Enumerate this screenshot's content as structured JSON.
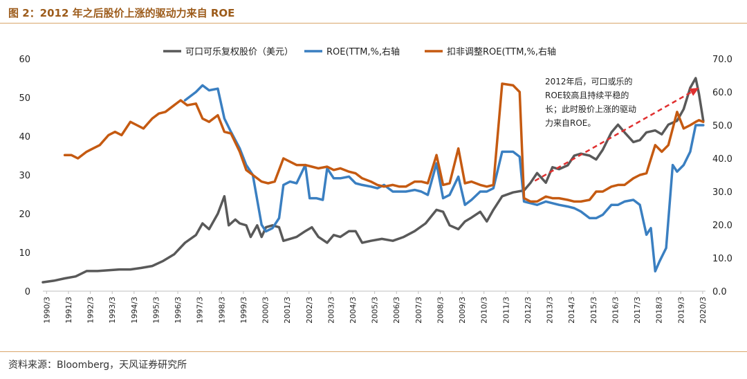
{
  "figure": {
    "title": "图 2：2012 年之后股价上涨的驱动力来自 ROE",
    "source": "资料来源：Bloomberg，天风证券研究所"
  },
  "annotation": {
    "lines": [
      "2012年后，可口或乐的",
      "ROE较高且持续平稳的",
      "长；此时股价上涨的驱动",
      "力来自ROE。"
    ]
  },
  "chart_data": {
    "type": "line",
    "colors": {
      "price": "#595959",
      "roe": "#3a7fc1",
      "roe_adj": "#c55a11",
      "arrow": "#e03030"
    },
    "legend": [
      "可口可乐复权股价（美元）",
      "ROE(TTM,%,右轴",
      "扣非调整ROE(TTM,%,右轴"
    ],
    "x_ticks": [
      "1990/3",
      "1991/3",
      "1992/3",
      "1993/3",
      "1994/3",
      "1995/3",
      "1996/3",
      "1997/3",
      "1998/3",
      "1999/3",
      "2000/3",
      "2001/3",
      "2002/3",
      "2003/3",
      "2004/3",
      "2005/3",
      "2006/3",
      "2007/3",
      "2008/3",
      "2009/3",
      "2010/3",
      "2011/3",
      "2012/3",
      "2013/3",
      "2014/3",
      "2015/3",
      "2016/3",
      "2017/3",
      "2018/3",
      "2019/3",
      "2020/3"
    ],
    "y_left": {
      "min": 0,
      "max": 60,
      "ticks": [
        "0",
        "10",
        "20",
        "30",
        "40",
        "50",
        "60"
      ]
    },
    "y_right": {
      "min": 0,
      "max": 70,
      "ticks": [
        "0.0",
        "10.0",
        "20.0",
        "30.0",
        "40.0",
        "50.0",
        "60.0",
        "70.0"
      ]
    },
    "series": [
      {
        "name": "可口可乐复权股价（美元）",
        "axis": "left",
        "points": [
          [
            1990.0,
            2.3
          ],
          [
            1990.5,
            2.7
          ],
          [
            1991.0,
            3.3
          ],
          [
            1991.5,
            3.8
          ],
          [
            1992.0,
            5.2
          ],
          [
            1992.5,
            5.2
          ],
          [
            1993.0,
            5.4
          ],
          [
            1993.5,
            5.6
          ],
          [
            1994.0,
            5.6
          ],
          [
            1994.5,
            6.0
          ],
          [
            1995.0,
            6.5
          ],
          [
            1995.5,
            7.8
          ],
          [
            1996.0,
            9.5
          ],
          [
            1996.5,
            12.5
          ],
          [
            1997.0,
            14.5
          ],
          [
            1997.3,
            17.5
          ],
          [
            1997.6,
            16.0
          ],
          [
            1998.0,
            20.0
          ],
          [
            1998.3,
            24.5
          ],
          [
            1998.5,
            17.0
          ],
          [
            1998.8,
            18.5
          ],
          [
            1999.0,
            17.5
          ],
          [
            1999.3,
            17.0
          ],
          [
            1999.5,
            14.0
          ],
          [
            1999.8,
            17.0
          ],
          [
            2000.0,
            14.0
          ],
          [
            2000.2,
            16.5
          ],
          [
            2000.5,
            17.0
          ],
          [
            2000.8,
            16.5
          ],
          [
            2001.0,
            13.0
          ],
          [
            2001.3,
            13.5
          ],
          [
            2001.6,
            14.0
          ],
          [
            2002.0,
            15.5
          ],
          [
            2002.3,
            16.5
          ],
          [
            2002.6,
            14.0
          ],
          [
            2003.0,
            12.5
          ],
          [
            2003.3,
            14.5
          ],
          [
            2003.6,
            14.0
          ],
          [
            2004.0,
            15.5
          ],
          [
            2004.3,
            15.5
          ],
          [
            2004.6,
            12.5
          ],
          [
            2005.0,
            13.0
          ],
          [
            2005.5,
            13.5
          ],
          [
            2006.0,
            13.0
          ],
          [
            2006.5,
            14.0
          ],
          [
            2007.0,
            15.5
          ],
          [
            2007.5,
            17.5
          ],
          [
            2008.0,
            21.0
          ],
          [
            2008.3,
            20.5
          ],
          [
            2008.6,
            17.0
          ],
          [
            2009.0,
            16.0
          ],
          [
            2009.3,
            18.0
          ],
          [
            2009.6,
            19.0
          ],
          [
            2010.0,
            20.5
          ],
          [
            2010.3,
            18.0
          ],
          [
            2010.6,
            21.0
          ],
          [
            2011.0,
            24.5
          ],
          [
            2011.5,
            25.5
          ],
          [
            2012.0,
            26.0
          ],
          [
            2012.3,
            28.0
          ],
          [
            2012.6,
            30.5
          ],
          [
            2013.0,
            28.0
          ],
          [
            2013.3,
            32.0
          ],
          [
            2013.6,
            31.5
          ],
          [
            2014.0,
            32.5
          ],
          [
            2014.3,
            35.0
          ],
          [
            2014.6,
            35.5
          ],
          [
            2015.0,
            35.0
          ],
          [
            2015.3,
            34.0
          ],
          [
            2015.6,
            36.5
          ],
          [
            2016.0,
            41.0
          ],
          [
            2016.3,
            43.0
          ],
          [
            2016.6,
            41.0
          ],
          [
            2017.0,
            38.5
          ],
          [
            2017.3,
            39.0
          ],
          [
            2017.6,
            41.0
          ],
          [
            2018.0,
            41.5
          ],
          [
            2018.3,
            40.5
          ],
          [
            2018.6,
            43.0
          ],
          [
            2019.0,
            44.0
          ],
          [
            2019.3,
            47.0
          ],
          [
            2019.6,
            52.5
          ],
          [
            2019.85,
            55.0
          ],
          [
            2020.0,
            51.0
          ],
          [
            2020.2,
            44.0
          ]
        ]
      },
      {
        "name": "ROE(TTM,%,右轴",
        "axis": "right",
        "points": [
          [
            1996.5,
            57.5
          ],
          [
            1997.0,
            60.0
          ],
          [
            1997.3,
            62.0
          ],
          [
            1997.6,
            60.5
          ],
          [
            1998.0,
            61.0
          ],
          [
            1998.3,
            52.0
          ],
          [
            1998.6,
            48.0
          ],
          [
            1999.0,
            43.0
          ],
          [
            1999.3,
            38.0
          ],
          [
            1999.6,
            35.0
          ],
          [
            2000.0,
            20.0
          ],
          [
            2000.2,
            18.0
          ],
          [
            2000.5,
            19.0
          ],
          [
            2000.8,
            22.0
          ],
          [
            2001.0,
            32.0
          ],
          [
            2001.3,
            33.0
          ],
          [
            2001.6,
            32.5
          ],
          [
            2002.0,
            38.0
          ],
          [
            2002.2,
            28.0
          ],
          [
            2002.5,
            28.0
          ],
          [
            2002.8,
            27.5
          ],
          [
            2003.0,
            37.0
          ],
          [
            2003.3,
            34.0
          ],
          [
            2003.6,
            34.0
          ],
          [
            2004.0,
            34.5
          ],
          [
            2004.3,
            32.5
          ],
          [
            2004.6,
            32.0
          ],
          [
            2005.0,
            31.5
          ],
          [
            2005.3,
            31.0
          ],
          [
            2005.6,
            32.0
          ],
          [
            2006.0,
            30.0
          ],
          [
            2006.3,
            30.0
          ],
          [
            2006.6,
            30.0
          ],
          [
            2007.0,
            30.5
          ],
          [
            2007.3,
            30.0
          ],
          [
            2007.6,
            29.0
          ],
          [
            2008.0,
            38.5
          ],
          [
            2008.3,
            28.0
          ],
          [
            2008.6,
            29.0
          ],
          [
            2009.0,
            34.5
          ],
          [
            2009.3,
            26.0
          ],
          [
            2009.6,
            27.5
          ],
          [
            2010.0,
            30.0
          ],
          [
            2010.3,
            30.0
          ],
          [
            2010.6,
            31.0
          ],
          [
            2011.0,
            42.0
          ],
          [
            2011.5,
            42.0
          ],
          [
            2011.8,
            40.5
          ],
          [
            2012.0,
            27.0
          ],
          [
            2012.3,
            26.5
          ],
          [
            2012.6,
            26.0
          ],
          [
            2013.0,
            27.0
          ],
          [
            2013.3,
            26.5
          ],
          [
            2013.6,
            26.0
          ],
          [
            2014.0,
            25.5
          ],
          [
            2014.3,
            25.0
          ],
          [
            2014.6,
            24.0
          ],
          [
            2015.0,
            22.0
          ],
          [
            2015.3,
            22.0
          ],
          [
            2015.6,
            23.0
          ],
          [
            2016.0,
            26.0
          ],
          [
            2016.3,
            26.0
          ],
          [
            2016.6,
            27.0
          ],
          [
            2017.0,
            27.5
          ],
          [
            2017.3,
            26.0
          ],
          [
            2017.6,
            17.0
          ],
          [
            2017.8,
            19.0
          ],
          [
            2018.0,
            6.0
          ],
          [
            2018.2,
            9.0
          ],
          [
            2018.5,
            13.0
          ],
          [
            2018.8,
            38.0
          ],
          [
            2019.0,
            36.0
          ],
          [
            2019.3,
            38.0
          ],
          [
            2019.6,
            42.0
          ],
          [
            2019.85,
            50.0
          ],
          [
            2020.0,
            50.0
          ],
          [
            2020.2,
            50.0
          ]
        ]
      },
      {
        "name": "扣非调整ROE(TTM,%,右轴",
        "axis": "right",
        "points": [
          [
            1991.0,
            41.0
          ],
          [
            1991.3,
            41.0
          ],
          [
            1991.6,
            40.0
          ],
          [
            1992.0,
            42.0
          ],
          [
            1992.3,
            43.0
          ],
          [
            1992.6,
            44.0
          ],
          [
            1993.0,
            47.0
          ],
          [
            1993.3,
            48.0
          ],
          [
            1993.6,
            47.0
          ],
          [
            1994.0,
            51.0
          ],
          [
            1994.3,
            50.0
          ],
          [
            1994.6,
            49.0
          ],
          [
            1995.0,
            52.0
          ],
          [
            1995.3,
            53.5
          ],
          [
            1995.6,
            54.0
          ],
          [
            1996.0,
            56.0
          ],
          [
            1996.3,
            57.5
          ],
          [
            1996.6,
            56.0
          ],
          [
            1997.0,
            56.5
          ],
          [
            1997.3,
            52.0
          ],
          [
            1997.6,
            51.0
          ],
          [
            1998.0,
            53.0
          ],
          [
            1998.3,
            48.0
          ],
          [
            1998.6,
            47.5
          ],
          [
            1999.0,
            42.0
          ],
          [
            1999.3,
            36.5
          ],
          [
            1999.6,
            35.0
          ],
          [
            2000.0,
            33.0
          ],
          [
            2000.3,
            32.5
          ],
          [
            2000.6,
            33.0
          ],
          [
            2001.0,
            40.0
          ],
          [
            2001.3,
            39.0
          ],
          [
            2001.6,
            38.0
          ],
          [
            2002.0,
            38.0
          ],
          [
            2002.3,
            37.5
          ],
          [
            2002.6,
            37.0
          ],
          [
            2003.0,
            37.5
          ],
          [
            2003.3,
            36.5
          ],
          [
            2003.6,
            37.0
          ],
          [
            2004.0,
            36.0
          ],
          [
            2004.3,
            35.5
          ],
          [
            2004.6,
            34.0
          ],
          [
            2005.0,
            33.0
          ],
          [
            2005.3,
            32.0
          ],
          [
            2005.6,
            31.5
          ],
          [
            2006.0,
            32.0
          ],
          [
            2006.3,
            31.5
          ],
          [
            2006.6,
            31.5
          ],
          [
            2007.0,
            33.0
          ],
          [
            2007.3,
            33.0
          ],
          [
            2007.6,
            32.5
          ],
          [
            2008.0,
            41.0
          ],
          [
            2008.3,
            32.0
          ],
          [
            2008.6,
            32.5
          ],
          [
            2009.0,
            43.0
          ],
          [
            2009.3,
            32.5
          ],
          [
            2009.6,
            33.0
          ],
          [
            2010.0,
            32.0
          ],
          [
            2010.3,
            31.5
          ],
          [
            2010.6,
            32.0
          ],
          [
            2011.0,
            62.5
          ],
          [
            2011.5,
            62.0
          ],
          [
            2011.8,
            60.0
          ],
          [
            2012.0,
            28.0
          ],
          [
            2012.3,
            27.0
          ],
          [
            2012.6,
            27.0
          ],
          [
            2013.0,
            28.5
          ],
          [
            2013.3,
            28.0
          ],
          [
            2013.6,
            28.0
          ],
          [
            2014.0,
            27.5
          ],
          [
            2014.3,
            27.0
          ],
          [
            2014.6,
            27.0
          ],
          [
            2015.0,
            27.5
          ],
          [
            2015.3,
            30.0
          ],
          [
            2015.6,
            30.0
          ],
          [
            2016.0,
            31.5
          ],
          [
            2016.3,
            32.0
          ],
          [
            2016.6,
            32.0
          ],
          [
            2017.0,
            34.0
          ],
          [
            2017.3,
            35.0
          ],
          [
            2017.6,
            35.5
          ],
          [
            2018.0,
            44.0
          ],
          [
            2018.3,
            42.0
          ],
          [
            2018.6,
            44.0
          ],
          [
            2019.0,
            54.0
          ],
          [
            2019.3,
            49.0
          ],
          [
            2019.6,
            50.0
          ],
          [
            2019.85,
            51.0
          ],
          [
            2020.0,
            51.5
          ],
          [
            2020.2,
            51.0
          ]
        ]
      }
    ],
    "arrow": {
      "from": [
        2012.5,
        28.5
      ],
      "to": [
        2020.0,
        52.5
      ]
    }
  }
}
